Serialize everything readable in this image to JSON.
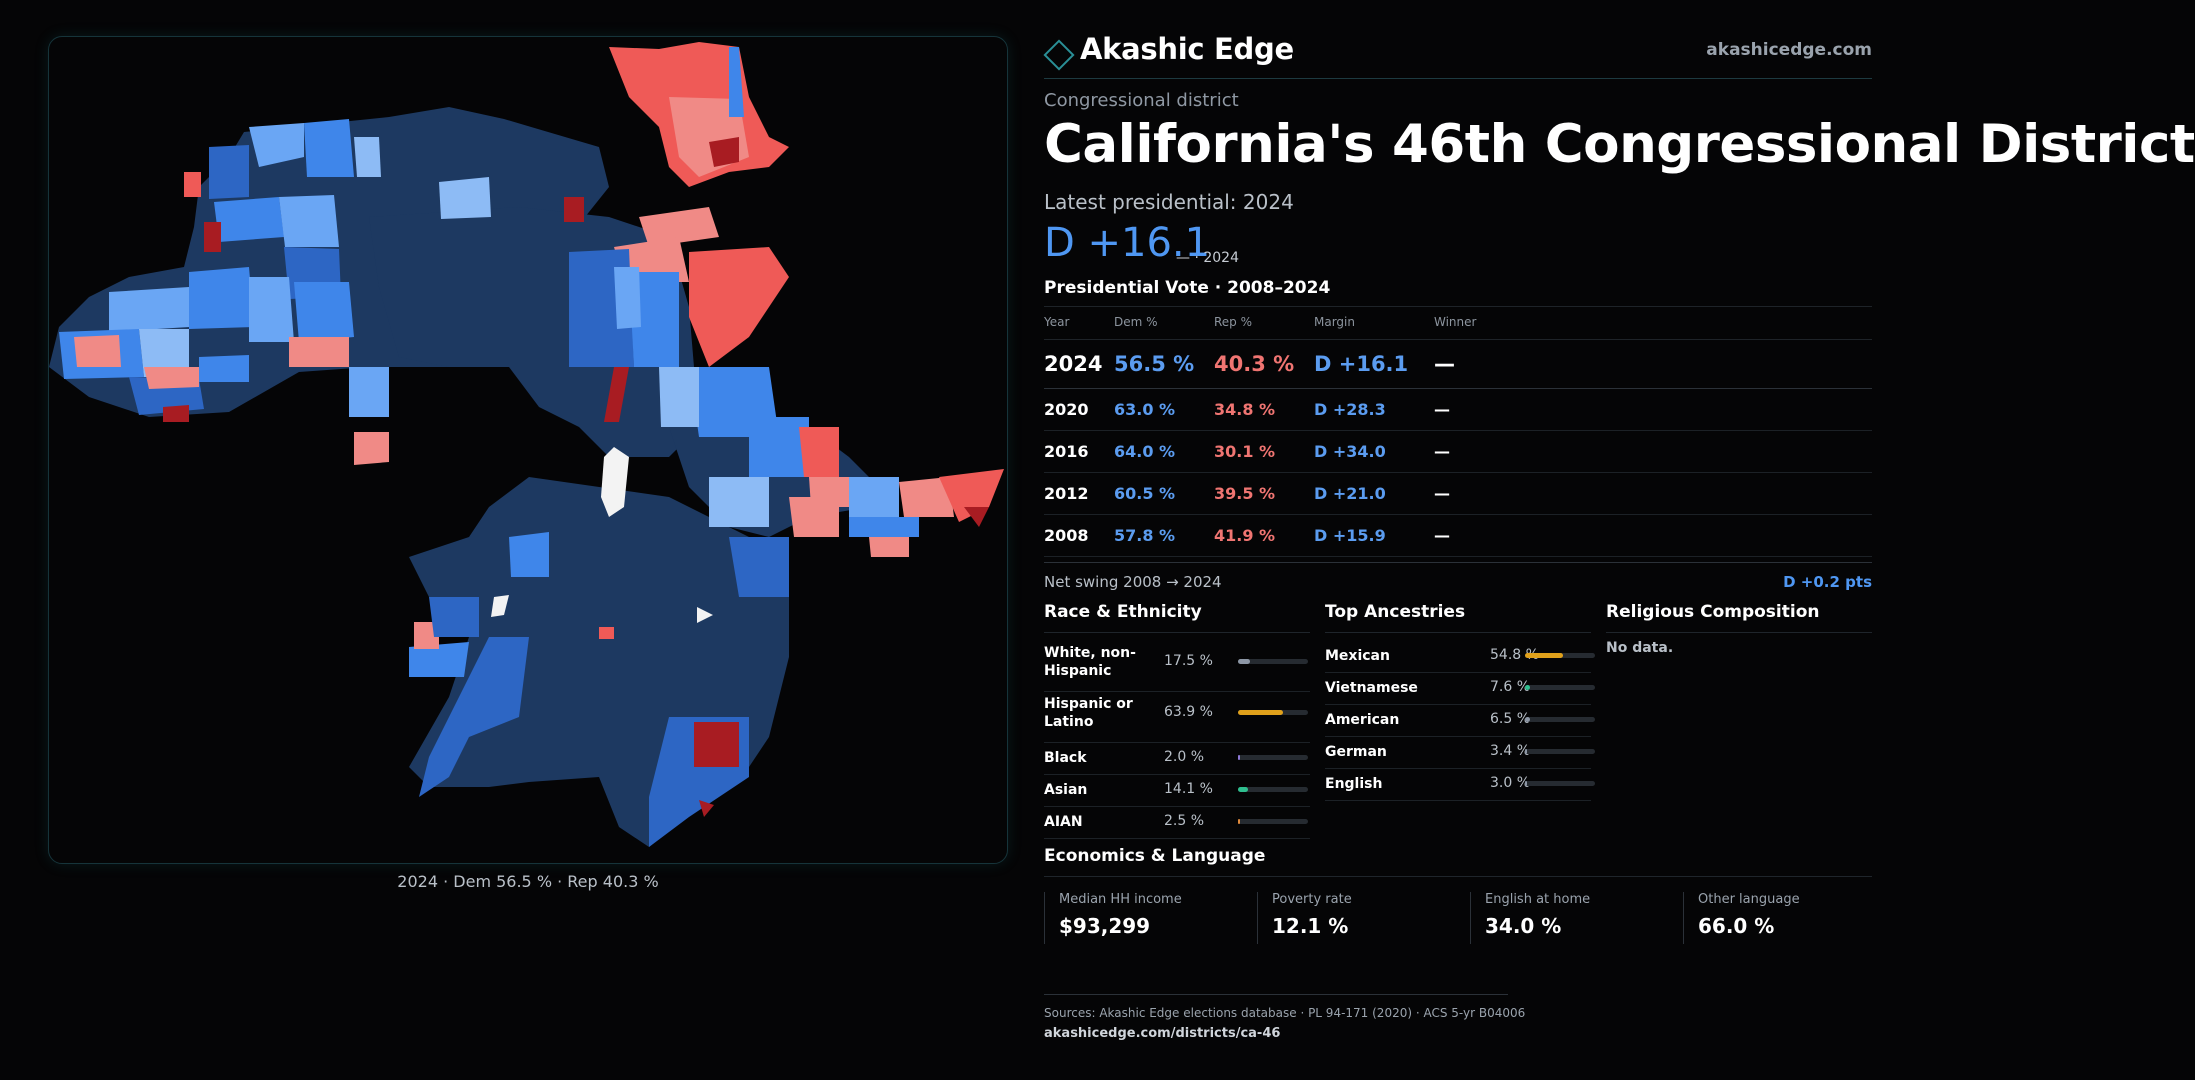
{
  "brand": {
    "name": "Akashic Edge",
    "url": "akashicedge.com",
    "logo_color": "#2a8f96"
  },
  "district": {
    "kicker": "Congressional district",
    "title": "California's 46th Congressional District"
  },
  "latest": {
    "label": "Latest presidential: 2024",
    "margin": "D +16.1",
    "sub": "— · 2024"
  },
  "presidential_vote": {
    "title": "Presidential Vote · 2008–2024",
    "headers": [
      "Year",
      "Dem %",
      "Rep %",
      "Margin",
      "Winner"
    ],
    "rows": [
      {
        "year": "2024",
        "dem": "56.5 %",
        "rep": "40.3 %",
        "margin": "D +16.1",
        "winner": "—"
      },
      {
        "year": "2020",
        "dem": "63.0 %",
        "rep": "34.8 %",
        "margin": "D +28.3",
        "winner": "—"
      },
      {
        "year": "2016",
        "dem": "64.0 %",
        "rep": "30.1 %",
        "margin": "D +34.0",
        "winner": "—"
      },
      {
        "year": "2012",
        "dem": "60.5 %",
        "rep": "39.5 %",
        "margin": "D +21.0",
        "winner": "—"
      },
      {
        "year": "2008",
        "dem": "57.8 %",
        "rep": "41.9 %",
        "margin": "D +15.9",
        "winner": "—"
      }
    ]
  },
  "swing": {
    "label": "Net swing 2008 → 2024",
    "value": "D +0.2 pts"
  },
  "race": {
    "title": "Race & Ethnicity",
    "rows": [
      {
        "label": "White, non-Hispanic",
        "pct": "17.5 %",
        "value": 17.5,
        "color": "#8d97a6"
      },
      {
        "label": "Hispanic or Latino",
        "pct": "63.9 %",
        "value": 63.9,
        "color": "#e0a11b"
      },
      {
        "label": "Black",
        "pct": "2.0 %",
        "value": 2.0,
        "color": "#8f7ad8"
      },
      {
        "label": "Asian",
        "pct": "14.1 %",
        "value": 14.1,
        "color": "#2fbf8f"
      },
      {
        "label": "AIAN",
        "pct": "2.5 %",
        "value": 2.5,
        "color": "#e08a3c"
      }
    ]
  },
  "ancestry": {
    "title": "Top Ancestries",
    "rows": [
      {
        "label": "Mexican",
        "pct": "54.8 %",
        "value": 54.8,
        "color": "#e0a11b"
      },
      {
        "label": "Vietnamese",
        "pct": "7.6 %",
        "value": 7.6,
        "color": "#2fbf8f"
      },
      {
        "label": "American",
        "pct": "6.5 %",
        "value": 6.5,
        "color": "#8d97a6"
      },
      {
        "label": "German",
        "pct": "3.4 %",
        "value": 3.4,
        "color": "#8d97a6"
      },
      {
        "label": "English",
        "pct": "3.0 %",
        "value": 3.0,
        "color": "#8d97a6"
      }
    ]
  },
  "religion": {
    "title": "Religious Composition",
    "empty": "No data."
  },
  "economics": {
    "title": "Economics & Language",
    "cells": [
      {
        "label": "Median HH income",
        "value": "$93,299"
      },
      {
        "label": "Poverty rate",
        "value": "12.1 %"
      },
      {
        "label": "English at home",
        "value": "34.0 %"
      },
      {
        "label": "Other language",
        "value": "66.0 %"
      }
    ]
  },
  "sources": {
    "text": "Sources: Akashic Edge elections database · PL 94-171 (2020) · ACS 5-yr B04006",
    "url": "akashicedge.com/districts/ca-46"
  },
  "map": {
    "caption": "2024 · Dem 56.5 % · Rep 40.3 %",
    "colors": {
      "dem_strong": "#1d3961",
      "dem_mid": "#2d66c4",
      "dem_bright": "#3f86ea",
      "dem_light": "#6aa6f4",
      "dem_pale": "#8dbbf5",
      "rep_light": "#f08a86",
      "rep_mid": "#ef5a57",
      "rep_strong": "#a81c22",
      "water": "#f3f3f3"
    }
  }
}
